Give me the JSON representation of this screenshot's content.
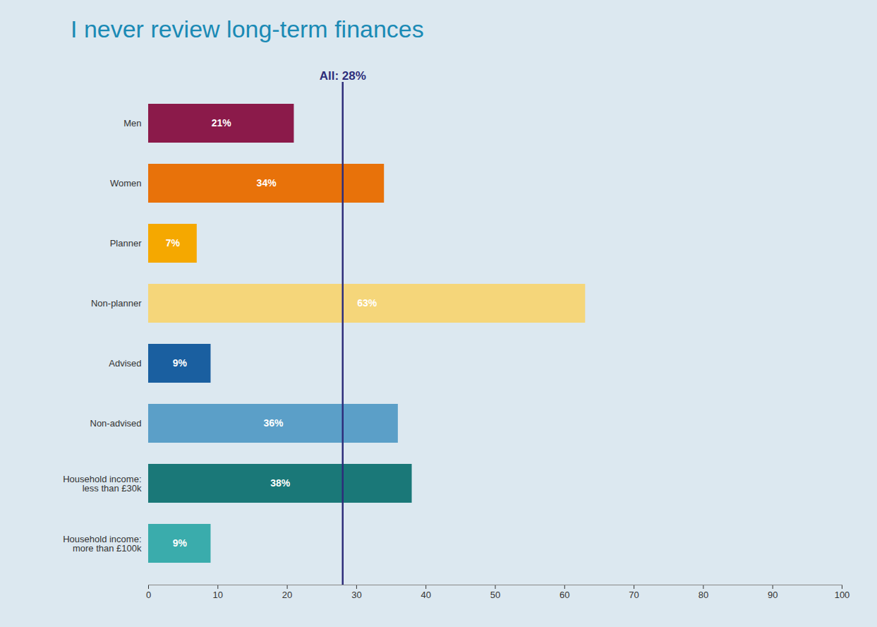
{
  "chart_data": {
    "type": "bar",
    "orientation": "horizontal",
    "title": "I never review long-term finances",
    "categories": [
      "Men",
      "Women",
      "Planner",
      "Non-planner",
      "Advised",
      "Non-advised",
      "Household income:\nless than £30k",
      "Household income:\nmore than £100k"
    ],
    "values": [
      21,
      34,
      7,
      63,
      9,
      36,
      38,
      9
    ],
    "value_labels": [
      "21%",
      "34%",
      "7%",
      "63%",
      "9%",
      "36%",
      "38%",
      "9%"
    ],
    "data_labels": true,
    "colors": [
      "#8b1a4a",
      "#e8720a",
      "#f5a800",
      "#f5d67a",
      "#1a5fa0",
      "#5b9fc8",
      "#1a7878",
      "#3aacac"
    ],
    "xlim": [
      0,
      100
    ],
    "xticks": [
      0,
      10,
      20,
      30,
      40,
      50,
      60,
      70,
      80,
      90,
      100
    ],
    "grid": false,
    "annotations": [
      {
        "text": "All: 28%",
        "x": 28,
        "color": "#2d2d7a"
      }
    ]
  }
}
